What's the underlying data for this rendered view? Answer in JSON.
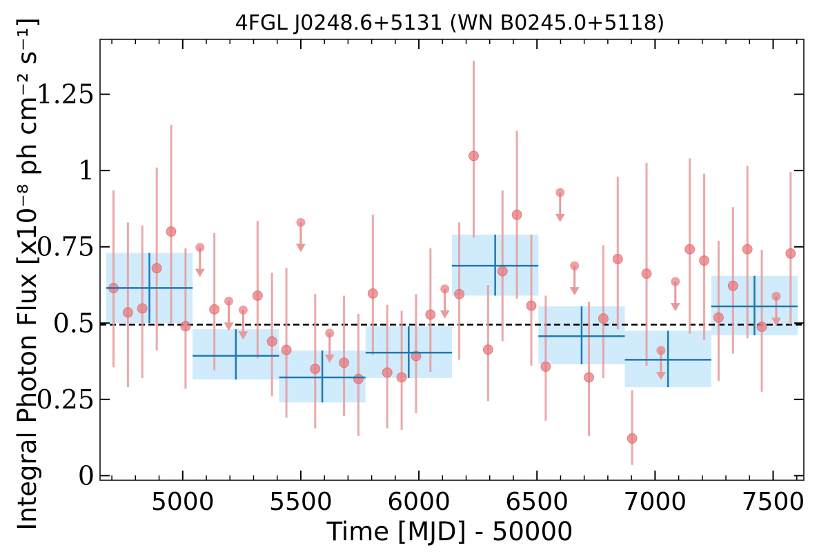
{
  "chart_data": {
    "type": "scatter",
    "title": "4FGL J0248.6+5131 (WN B0245.0+5118)",
    "xlabel": "Time [MJD] - 50000",
    "ylabel": "Integral Photon Flux [x10⁻⁸ ph cm⁻² s⁻¹]",
    "xlim": [
      4650,
      7630
    ],
    "ylim": [
      -0.015,
      1.43
    ],
    "xticks": [
      5000,
      5500,
      6000,
      6500,
      7000,
      7500
    ],
    "xtick_labels": [
      "5000",
      "5500",
      "6000",
      "6500",
      "7000",
      "7500"
    ],
    "yticks": [
      0,
      0.25,
      0.5,
      0.75,
      1,
      1.25
    ],
    "ytick_labels": [
      "0",
      "0.25",
      "0.5",
      "0.75",
      "1",
      "1.25"
    ],
    "reference_line": 0.495,
    "colors": {
      "points": "#e8787e",
      "errorbars": "#e89a9a",
      "bins_fill": "#c8e9fb",
      "bins_line": "#1f77b4",
      "reference": "#000000"
    },
    "series": [
      {
        "marker": "circle",
        "points": [
          {
            "x": 4707,
            "y": 0.615,
            "low": 0.355,
            "high": 0.935
          },
          {
            "x": 4768,
            "y": 0.535,
            "low": 0.29,
            "high": 0.83
          },
          {
            "x": 4829,
            "y": 0.548,
            "low": 0.32,
            "high": 0.82
          },
          {
            "x": 4890,
            "y": 0.68,
            "low": 0.41,
            "high": 1.01
          },
          {
            "x": 4951,
            "y": 0.8,
            "low": 0.5,
            "high": 1.15
          },
          {
            "x": 5012,
            "y": 0.49,
            "low": 0.285,
            "high": 0.745
          },
          {
            "x": 5134,
            "y": 0.545,
            "low": 0.345,
            "high": 0.795
          },
          {
            "x": 5317,
            "y": 0.59,
            "low": 0.385,
            "high": 0.835
          },
          {
            "x": 5378,
            "y": 0.44,
            "low": 0.26,
            "high": 0.665
          },
          {
            "x": 5439,
            "y": 0.412,
            "low": 0.19,
            "high": 0.68
          },
          {
            "x": 5561,
            "y": 0.35,
            "low": 0.155,
            "high": 0.595
          },
          {
            "x": 5683,
            "y": 0.37,
            "low": 0.195,
            "high": 0.59
          },
          {
            "x": 5744,
            "y": 0.317,
            "low": 0.13,
            "high": 0.53
          },
          {
            "x": 5805,
            "y": 0.597,
            "low": 0.395,
            "high": 0.855
          },
          {
            "x": 5866,
            "y": 0.338,
            "low": 0.155,
            "high": 0.56
          },
          {
            "x": 5927,
            "y": 0.322,
            "low": 0.15,
            "high": 0.54
          },
          {
            "x": 5988,
            "y": 0.392,
            "low": 0.205,
            "high": 0.595
          },
          {
            "x": 6049,
            "y": 0.528,
            "low": 0.34,
            "high": 0.745
          },
          {
            "x": 6171,
            "y": 0.595,
            "low": 0.38,
            "high": 0.83
          },
          {
            "x": 6232,
            "y": 1.048,
            "low": 0.78,
            "high": 1.36
          },
          {
            "x": 6293,
            "y": 0.413,
            "low": 0.245,
            "high": 0.625
          },
          {
            "x": 6354,
            "y": 0.67,
            "low": 0.44,
            "high": 0.935
          },
          {
            "x": 6415,
            "y": 0.855,
            "low": 0.58,
            "high": 1.13
          },
          {
            "x": 6476,
            "y": 0.557,
            "low": 0.36,
            "high": 0.79
          },
          {
            "x": 6537,
            "y": 0.357,
            "low": 0.18,
            "high": 0.59
          },
          {
            "x": 6720,
            "y": 0.322,
            "low": 0.13,
            "high": 0.57
          },
          {
            "x": 6781,
            "y": 0.515,
            "low": 0.32,
            "high": 0.755
          },
          {
            "x": 6842,
            "y": 0.71,
            "low": 0.48,
            "high": 0.98
          },
          {
            "x": 6903,
            "y": 0.122,
            "low": 0.035,
            "high": 0.28
          },
          {
            "x": 6964,
            "y": 0.662,
            "low": 0.36,
            "high": 1.025
          },
          {
            "x": 7147,
            "y": 0.742,
            "low": 0.465,
            "high": 1.04
          },
          {
            "x": 7208,
            "y": 0.705,
            "low": 0.445,
            "high": 0.99
          },
          {
            "x": 7269,
            "y": 0.518,
            "low": 0.31,
            "high": 0.77
          },
          {
            "x": 7330,
            "y": 0.622,
            "low": 0.4,
            "high": 0.88
          },
          {
            "x": 7391,
            "y": 0.742,
            "low": 0.45,
            "high": 1.015
          },
          {
            "x": 7452,
            "y": 0.488,
            "low": 0.275,
            "high": 0.74
          },
          {
            "x": 7574,
            "y": 0.728,
            "low": 0.495,
            "high": 0.995
          }
        ]
      },
      {
        "marker": "upper-limit",
        "points": [
          {
            "x": 5073,
            "y": 0.748
          },
          {
            "x": 5195,
            "y": 0.572
          },
          {
            "x": 5256,
            "y": 0.543
          },
          {
            "x": 5500,
            "y": 0.83
          },
          {
            "x": 5622,
            "y": 0.467
          },
          {
            "x": 6110,
            "y": 0.612
          },
          {
            "x": 6598,
            "y": 0.928
          },
          {
            "x": 6659,
            "y": 0.688
          },
          {
            "x": 7025,
            "y": 0.41
          },
          {
            "x": 7086,
            "y": 0.636
          },
          {
            "x": 7513,
            "y": 0.588
          }
        ]
      },
      {
        "marker": "bin",
        "bins": [
          {
            "x_start": 4676,
            "x_end": 5042,
            "x_center": 4859,
            "y": 0.615,
            "low": 0.5,
            "high": 0.73
          },
          {
            "x_start": 5042,
            "x_end": 5408,
            "x_center": 5225,
            "y": 0.393,
            "low": 0.315,
            "high": 0.48
          },
          {
            "x_start": 5408,
            "x_end": 5774,
            "x_center": 5591,
            "y": 0.322,
            "low": 0.24,
            "high": 0.41
          },
          {
            "x_start": 5774,
            "x_end": 6140,
            "x_center": 5957,
            "y": 0.403,
            "low": 0.32,
            "high": 0.49
          },
          {
            "x_start": 6140,
            "x_end": 6506,
            "x_center": 6323,
            "y": 0.688,
            "low": 0.59,
            "high": 0.79
          },
          {
            "x_start": 6506,
            "x_end": 6872,
            "x_center": 6689,
            "y": 0.457,
            "low": 0.365,
            "high": 0.555
          },
          {
            "x_start": 6872,
            "x_end": 7238,
            "x_center": 7055,
            "y": 0.38,
            "low": 0.29,
            "high": 0.475
          },
          {
            "x_start": 7238,
            "x_end": 7604,
            "x_center": 7421,
            "y": 0.555,
            "low": 0.46,
            "high": 0.655
          }
        ]
      }
    ]
  }
}
